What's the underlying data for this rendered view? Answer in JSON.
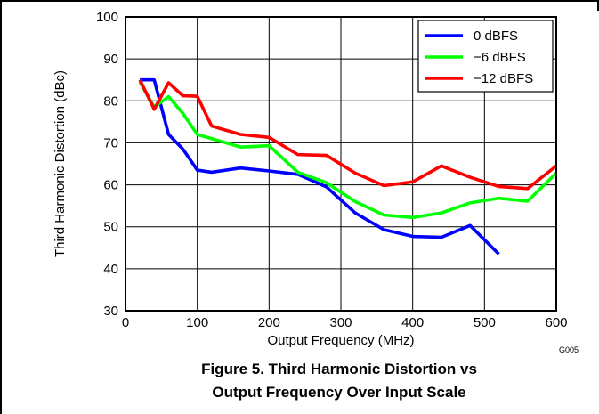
{
  "figure": {
    "code": "G005",
    "caption_line1": "Figure 5. Third Harmonic Distortion vs",
    "caption_line2": "Output Frequency Over Input Scale"
  },
  "chart_data": {
    "type": "line",
    "title": "",
    "xlabel": "Output Frequency (MHz)",
    "ylabel": "Third Harmonic Distortion (dBc)",
    "xlim": [
      0,
      600
    ],
    "ylim": [
      30,
      100
    ],
    "xticks": [
      0,
      100,
      200,
      300,
      400,
      500,
      600
    ],
    "yticks": [
      30,
      40,
      50,
      60,
      70,
      80,
      90,
      100
    ],
    "grid": true,
    "legend_position": "top-right",
    "series": [
      {
        "name": "0 dBFS",
        "color": "#0000ff",
        "x": [
          20,
          40,
          60,
          80,
          100,
          120,
          160,
          200,
          240,
          280,
          320,
          360,
          400,
          440,
          480,
          520
        ],
        "y": [
          85,
          85,
          72,
          68.5,
          63.5,
          63,
          64,
          63.3,
          62.5,
          59.5,
          53.3,
          49.3,
          47.7,
          47.5,
          50.3,
          43.5
        ]
      },
      {
        "name": "−6 dBFS",
        "color": "#00ff00",
        "x": [
          20,
          40,
          60,
          80,
          100,
          120,
          160,
          200,
          240,
          280,
          320,
          360,
          400,
          440,
          480,
          520,
          560,
          600
        ],
        "y": [
          84.5,
          78.5,
          81,
          77,
          72,
          71,
          69,
          69.3,
          63,
          60.5,
          56,
          52.8,
          52.2,
          53.3,
          55.7,
          56.8,
          56.1,
          62.8
        ]
      },
      {
        "name": "−12 dBFS",
        "color": "#ff0000",
        "x": [
          20,
          40,
          60,
          80,
          100,
          120,
          160,
          200,
          240,
          280,
          320,
          360,
          400,
          440,
          480,
          520,
          560,
          600
        ],
        "y": [
          85,
          78,
          84.3,
          81.2,
          81.1,
          74,
          72,
          71.3,
          67.2,
          67,
          62.8,
          59.8,
          60.7,
          64.5,
          61.8,
          59.6,
          59.1,
          64.5
        ]
      }
    ]
  }
}
